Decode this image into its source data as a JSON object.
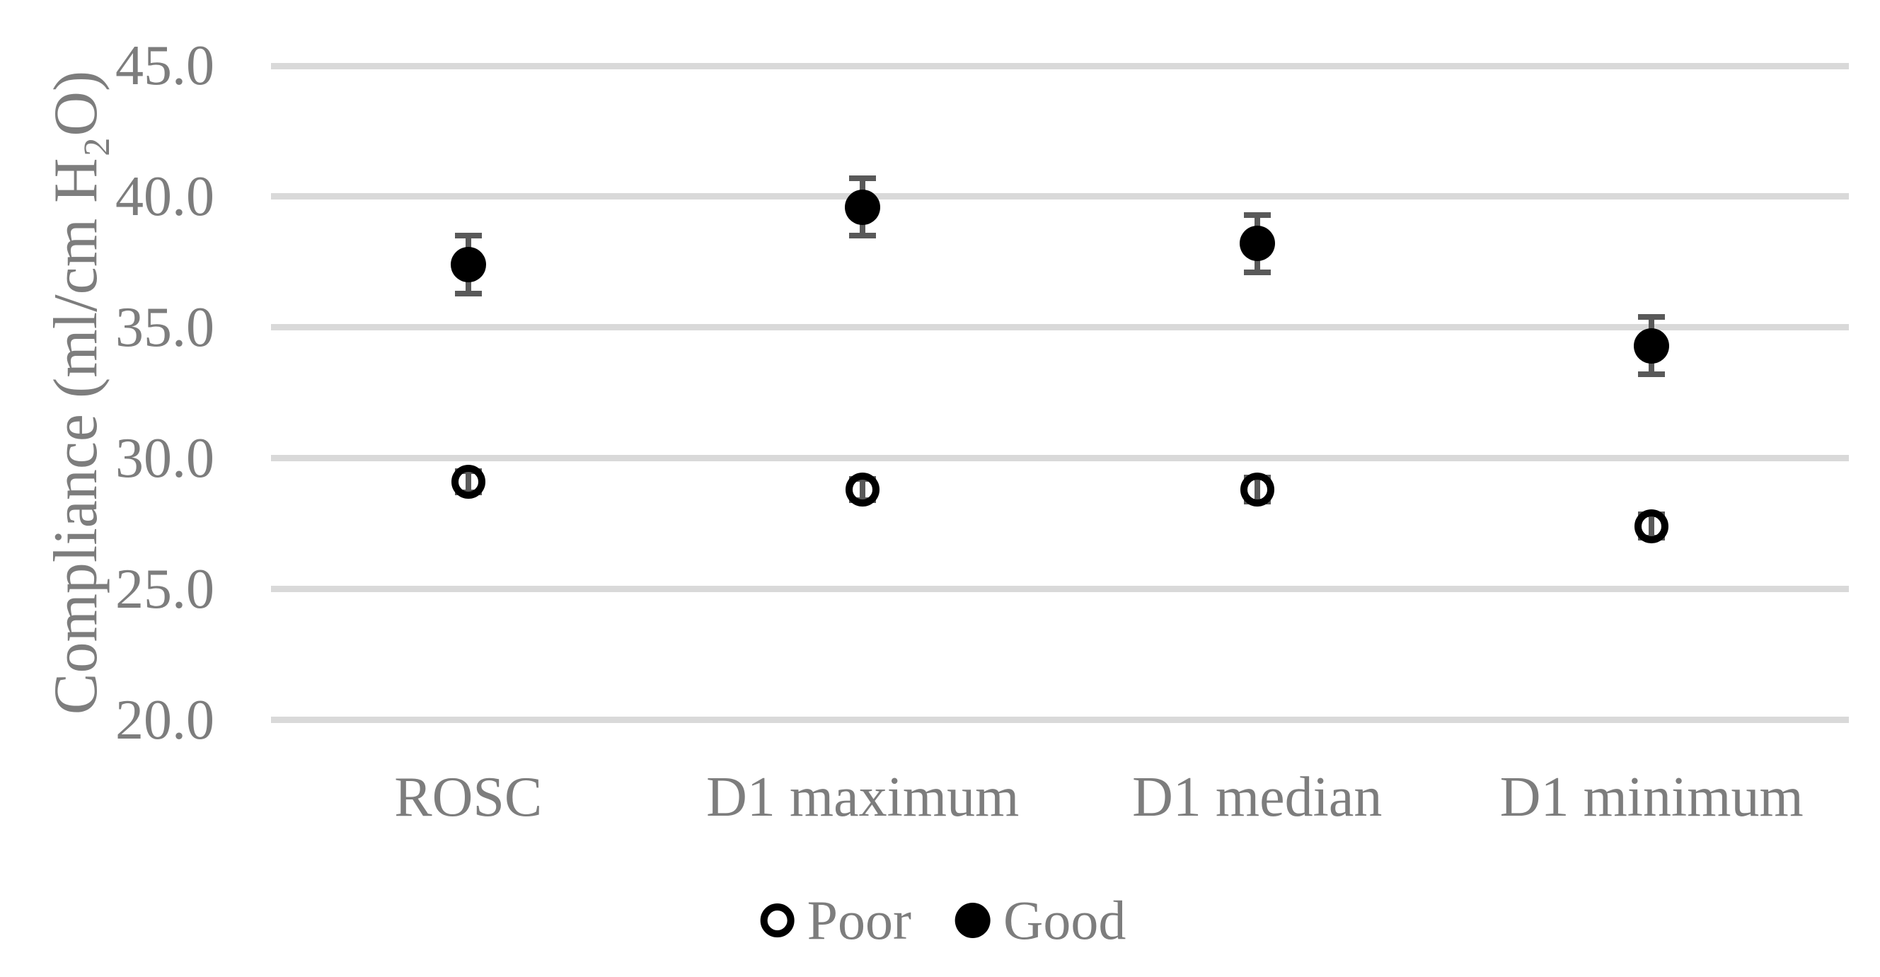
{
  "chart_data": {
    "type": "scatter",
    "title": "",
    "xlabel": "",
    "ylabel": "Compliance (ml/cm H₂O)",
    "categories": [
      "ROSC",
      "D1 maximum",
      "D1 median",
      "D1 minimum"
    ],
    "ylim": [
      20,
      45
    ],
    "yticks": [
      20,
      25,
      30,
      35,
      40,
      45
    ],
    "ytick_labels": [
      "20.0",
      "25.0",
      "30.0",
      "35.0",
      "40.0",
      "45.0"
    ],
    "grid": "horizontal",
    "legend_position": "bottom-center",
    "series": [
      {
        "name": "Poor",
        "marker": "open-circle",
        "values": [
          29.1,
          28.8,
          28.8,
          27.4
        ],
        "error": [
          0.4,
          0.4,
          0.45,
          0.45
        ]
      },
      {
        "name": "Good",
        "marker": "filled-circle",
        "values": [
          37.4,
          39.6,
          38.2,
          34.3
        ],
        "error": [
          1.1,
          1.1,
          1.1,
          1.1
        ]
      }
    ],
    "colors": {
      "marker": "#000000",
      "error_bar": "#595959",
      "gridline": "#d9d9d9",
      "text": "#7d7d7d",
      "background": "#ffffff"
    }
  }
}
